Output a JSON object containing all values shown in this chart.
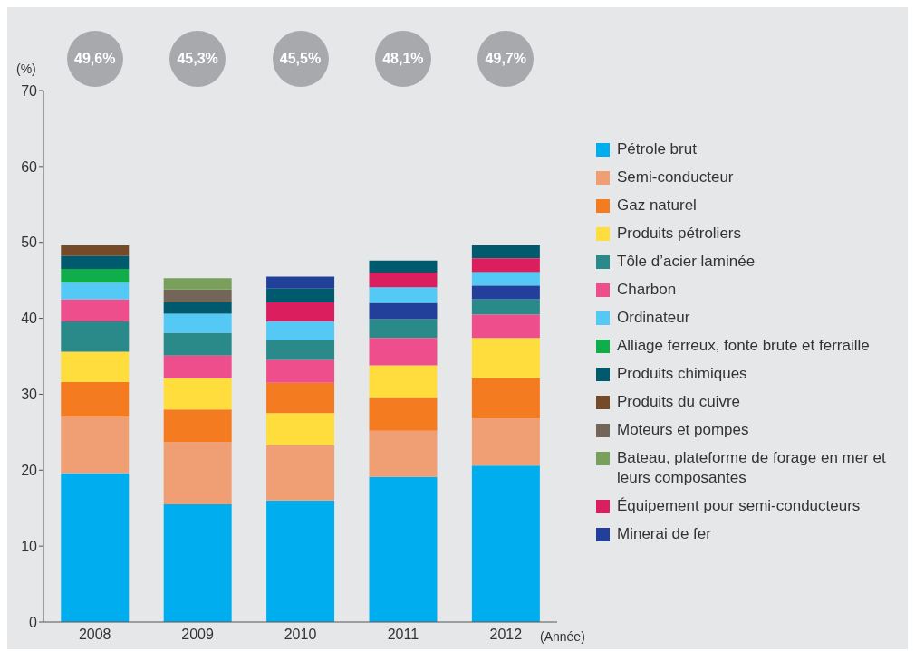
{
  "chart_data": {
    "type": "bar",
    "xlabel": "(Année)",
    "ylabel": "(%)",
    "categories": [
      "2008",
      "2009",
      "2010",
      "2011",
      "2012"
    ],
    "ylim": [
      0,
      70
    ],
    "yticks": [
      0,
      10,
      20,
      30,
      40,
      50,
      60,
      70
    ],
    "legend": "right",
    "annotations": [
      "49,6%",
      "45,3%",
      "45,5%",
      "48,1%",
      "49,7%"
    ],
    "series": [
      {
        "name": "Pétrole brut",
        "color": "#00aeef",
        "values": [
          19.6,
          15.5,
          16.0,
          19.1,
          20.6
        ],
        "base": [
          0,
          0,
          0,
          0,
          0
        ]
      },
      {
        "name": "Semi-conducteur",
        "color": "#f09e74",
        "values": [
          7.4,
          8.2,
          7.3,
          6.1,
          6.2
        ],
        "base": [
          19.6,
          15.5,
          16.0,
          19.1,
          20.6
        ]
      },
      {
        "name": "Gaz naturel",
        "color": "#f47b20",
        "values": [
          4.6,
          4.3,
          4.0,
          4.3,
          5.3
        ],
        "base": [
          27.0,
          23.7,
          27.5,
          25.2,
          26.8
        ]
      },
      {
        "name": "Produits pétroliers",
        "color": "#ffdd3c",
        "values": [
          4.0,
          4.1,
          4.2,
          4.3,
          5.3
        ],
        "base": [
          31.6,
          28.0,
          23.3,
          29.5,
          32.1
        ]
      },
      {
        "name": "Tôle d’acier laminée",
        "color": "#2a8a8a",
        "values": [
          4.0,
          3.0,
          2.6,
          2.5,
          2.0
        ],
        "base": [
          35.6,
          35.1,
          34.5,
          37.4,
          40.5
        ]
      },
      {
        "name": "Charbon",
        "color": "#ee4f8c",
        "values": [
          2.9,
          3.0,
          3.0,
          3.6,
          3.1
        ],
        "base": [
          39.6,
          32.1,
          31.5,
          33.8,
          37.4
        ]
      },
      {
        "name": "Ordinateur",
        "color": "#55c9f5",
        "values": [
          2.2,
          2.5,
          2.5,
          2.1,
          1.8
        ],
        "base": [
          42.5,
          38.1,
          37.1,
          42.0,
          44.3
        ]
      },
      {
        "name": "Alliage ferreux, fonte brute et ferraille",
        "color": "#0fae4b",
        "values": [
          1.8,
          null,
          null,
          null,
          null
        ],
        "base": [
          44.7,
          null,
          null,
          null,
          null
        ]
      },
      {
        "name": "Produits chimiques",
        "color": "#005a6e",
        "values": [
          1.7,
          1.5,
          1.8,
          1.6,
          1.7
        ],
        "base": [
          46.5,
          40.6,
          42.1,
          46.0,
          47.9
        ]
      },
      {
        "name": "Produits du cuivre",
        "color": "#744a28",
        "values": [
          1.4,
          null,
          null,
          null,
          null
        ],
        "base": [
          48.2,
          null,
          null,
          null,
          null
        ]
      },
      {
        "name": "Moteurs et pompes",
        "color": "#736658",
        "values": [
          null,
          1.7,
          null,
          null,
          null
        ],
        "base": [
          null,
          42.1,
          null,
          null,
          null
        ]
      },
      {
        "name": "Bateau, plateforme de forage en mer et leurs composantes",
        "color": "#78a05a",
        "values": [
          null,
          1.5,
          null,
          null,
          null
        ],
        "base": [
          null,
          43.8,
          null,
          null,
          null
        ]
      },
      {
        "name": "Équipement pour semi-conducteurs",
        "color": "#da1e5e",
        "values": [
          null,
          null,
          2.5,
          1.9,
          1.8
        ],
        "base": [
          null,
          null,
          39.6,
          44.1,
          46.1
        ]
      },
      {
        "name": "Minerai de fer",
        "color": "#22409a",
        "values": [
          null,
          null,
          1.6,
          2.1,
          1.8
        ],
        "base": [
          null,
          null,
          43.9,
          39.9,
          42.5
        ]
      }
    ]
  }
}
